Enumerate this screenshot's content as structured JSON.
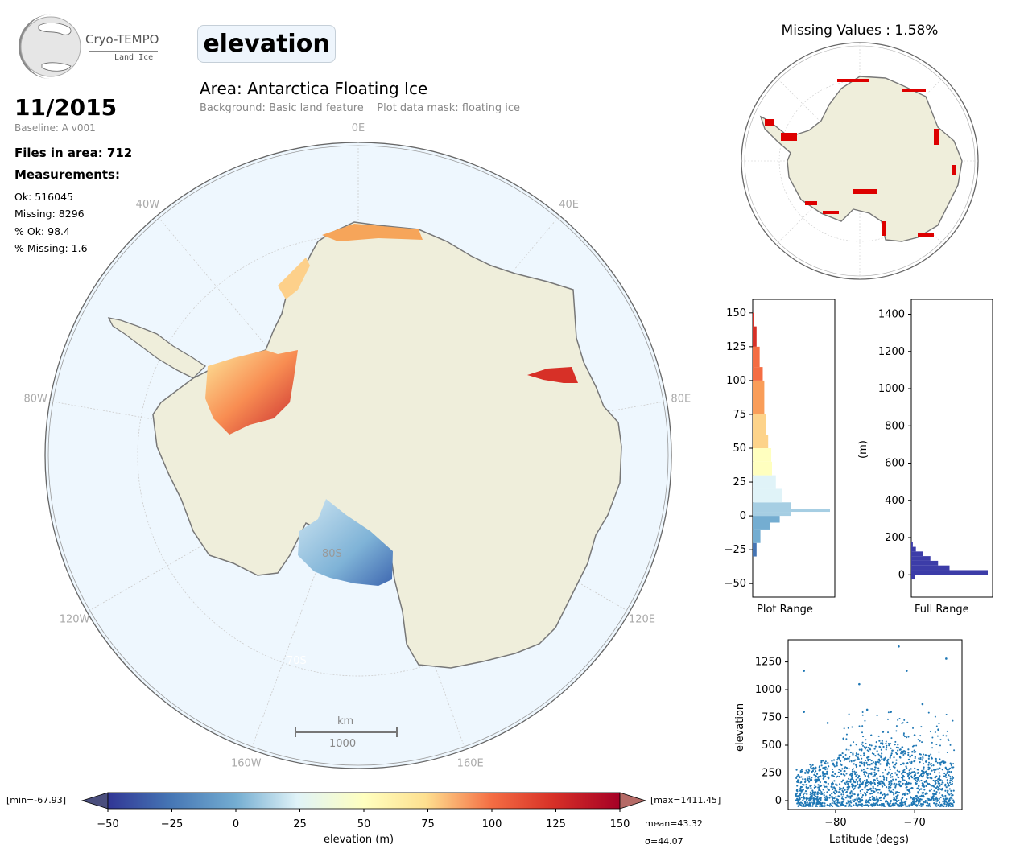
{
  "logo": {
    "name": "Cryo-TEMPO",
    "subtitle": "Land Ice"
  },
  "parameter": "elevation",
  "area_title": "Area: Antarctica Floating Ice",
  "area_subtitle": "Background: Basic land feature    Plot data mask: floating ice",
  "date": "11/2015",
  "baseline": "Baseline: A v001",
  "files_in_area": "Files in area: 712",
  "measurements_title": "Measurements:",
  "stats": [
    "Ok: 516045",
    "Missing: 8296",
    "% Ok: 98.4",
    "% Missing: 1.6"
  ],
  "map": {
    "meridian_labels": [
      {
        "text": "0E",
        "deg": 0
      },
      {
        "text": "40E",
        "deg": 40
      },
      {
        "text": "80E",
        "deg": 80
      },
      {
        "text": "120E",
        "deg": 120
      },
      {
        "text": "160E",
        "deg": 160
      },
      {
        "text": "160W",
        "deg": -160
      },
      {
        "text": "120W",
        "deg": -120
      },
      {
        "text": "80W",
        "deg": -80
      },
      {
        "text": "40W",
        "deg": -40
      }
    ],
    "lat_labels": [
      "80S",
      "70S"
    ],
    "scale_bar": {
      "unit": "km",
      "value": "1000"
    },
    "colors": {
      "ocean": "#eef7fe",
      "land": "#efeedb",
      "coast": "#777777"
    }
  },
  "missing_map": {
    "title": "Missing Values : 1.58%",
    "missing_color": "#dd0000"
  },
  "colorbar": {
    "label": "elevation (m)",
    "ticks": [
      "−50",
      "−25",
      "0",
      "25",
      "50",
      "75",
      "100",
      "125",
      "150"
    ],
    "min_label": "[min=-67.93]",
    "max_label": "[max=1411.45]",
    "mean_label": "mean=43.32",
    "sigma_label": "σ=44.07"
  },
  "chart_data": [
    {
      "type": "bar",
      "orientation": "horizontal-histogram",
      "xlabel": "Plot Range",
      "ylabel": "",
      "ylim": [
        -60,
        160
      ],
      "yticks": [
        "150",
        "125",
        "100",
        "75",
        "50",
        "25",
        "0",
        "−25",
        "−50"
      ],
      "bins_y": [
        -30,
        -20,
        -10,
        -5,
        0,
        3,
        5,
        10,
        20,
        30,
        40,
        45,
        50,
        60,
        75,
        90,
        100,
        110,
        125,
        140
      ],
      "counts": [
        0.05,
        0.1,
        0.22,
        0.35,
        0.5,
        1.0,
        0.5,
        0.38,
        0.3,
        0.25,
        0.24,
        0.24,
        0.2,
        0.17,
        0.15,
        0.15,
        0.13,
        0.09,
        0.05,
        0.02
      ]
    },
    {
      "type": "bar",
      "orientation": "horizontal-histogram",
      "xlabel": "Full Range",
      "ylabel": "(m)",
      "ylim": [
        -120,
        1480
      ],
      "yticks": [
        "1400",
        "1200",
        "1000",
        "800",
        "600",
        "400",
        "200",
        "0"
      ],
      "bins_y": [
        -25,
        0,
        25,
        50,
        75,
        100,
        125,
        150
      ],
      "counts": [
        0.05,
        1.0,
        0.5,
        0.35,
        0.25,
        0.15,
        0.06,
        0.02
      ]
    },
    {
      "type": "scatter",
      "xlabel": "Latitude (degs)",
      "ylabel": "elevation",
      "xlim": [
        -86,
        -64
      ],
      "ylim": [
        -80,
        1450
      ],
      "xticks": [
        "−80",
        "−70"
      ],
      "yticks": [
        "1250",
        "1000",
        "750",
        "500",
        "250",
        "0"
      ],
      "dense_band": {
        "x": [
          -85,
          -65
        ],
        "y": [
          -50,
          150
        ]
      },
      "outliers": [
        {
          "x": -84,
          "y": 1170
        },
        {
          "x": -84,
          "y": 800
        },
        {
          "x": -81,
          "y": 700
        },
        {
          "x": -77,
          "y": 1050
        },
        {
          "x": -76,
          "y": 820
        },
        {
          "x": -73,
          "y": 800
        },
        {
          "x": -72,
          "y": 1390
        },
        {
          "x": -71,
          "y": 1170
        },
        {
          "x": -69,
          "y": 870
        },
        {
          "x": -66,
          "y": 1280
        },
        {
          "x": -67,
          "y": 640
        },
        {
          "x": -79,
          "y": 560
        },
        {
          "x": -74,
          "y": 620
        },
        {
          "x": -70,
          "y": 590
        }
      ]
    }
  ]
}
